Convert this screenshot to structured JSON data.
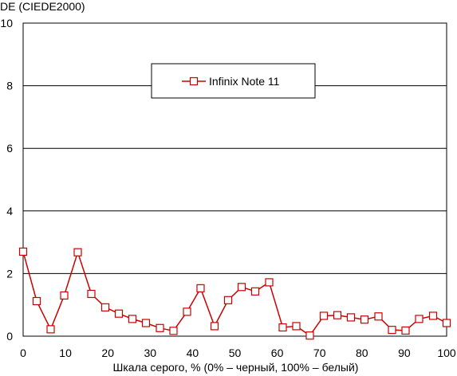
{
  "chart_data": {
    "type": "line",
    "ylabel": "DE (CIEDE2000)",
    "xlabel": "Шкала серого, % (0% – черный, 100% – белый)",
    "xlim": [
      0,
      100
    ],
    "ylim": [
      0,
      10
    ],
    "x_ticks": [
      0,
      10,
      20,
      30,
      40,
      50,
      60,
      70,
      80,
      90,
      100
    ],
    "y_ticks": [
      0,
      2,
      4,
      6,
      8,
      10
    ],
    "grid": "horizontal",
    "legend_position": "top-center",
    "series": [
      {
        "name": "Infinix Note 11",
        "color": "#cc0000",
        "marker": "open-square",
        "x": [
          0,
          3.2,
          6.5,
          9.7,
          12.9,
          16.1,
          19.4,
          22.6,
          25.8,
          29.0,
          32.3,
          35.5,
          38.7,
          41.9,
          45.2,
          48.4,
          51.6,
          54.8,
          58.1,
          61.3,
          64.5,
          67.7,
          71.0,
          74.2,
          77.4,
          80.6,
          83.9,
          87.1,
          90.3,
          93.5,
          96.8,
          100
        ],
        "y": [
          2.7,
          1.12,
          0.22,
          1.3,
          2.68,
          1.35,
          0.92,
          0.72,
          0.55,
          0.42,
          0.26,
          0.17,
          0.78,
          1.53,
          0.32,
          1.15,
          1.57,
          1.43,
          1.72,
          0.28,
          0.32,
          0.02,
          0.65,
          0.67,
          0.6,
          0.53,
          0.63,
          0.2,
          0.18,
          0.55,
          0.65,
          0.42
        ]
      }
    ]
  }
}
